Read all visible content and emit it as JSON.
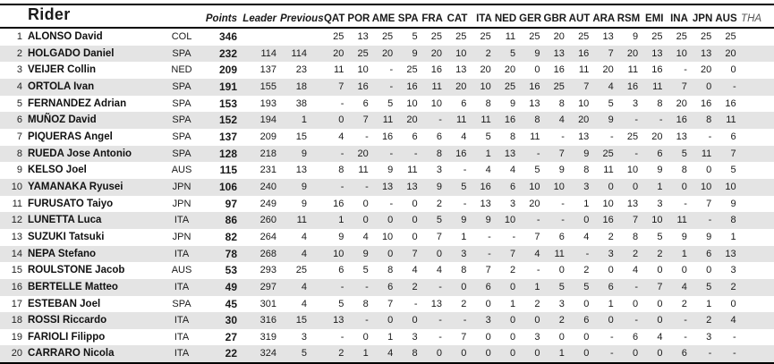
{
  "table": {
    "rider_header": "Rider",
    "points_header": "Points",
    "leader_header": "Leader",
    "previous_header": "Previous",
    "race_headers": [
      "QAT",
      "POR",
      "AME",
      "SPA",
      "FRA",
      "CAT",
      "ITA",
      "NED",
      "GER",
      "GBR",
      "AUT",
      "ARA",
      "RSM",
      "EMI",
      "INA",
      "JPN",
      "AUS",
      "THA"
    ],
    "future_races": [
      "THA"
    ],
    "rows": [
      {
        "pos": 1,
        "name": "ALONSO David",
        "country": "COL",
        "points": 346,
        "leader": "",
        "previous": "",
        "scores": [
          "25",
          "13",
          "25",
          "5",
          "25",
          "25",
          "25",
          "11",
          "25",
          "20",
          "25",
          "13",
          "9",
          "25",
          "25",
          "25",
          "25"
        ]
      },
      {
        "pos": 2,
        "name": "HOLGADO Daniel",
        "country": "SPA",
        "points": 232,
        "leader": "114",
        "previous": "114",
        "scores": [
          "20",
          "25",
          "20",
          "9",
          "20",
          "10",
          "2",
          "5",
          "9",
          "13",
          "16",
          "7",
          "20",
          "13",
          "10",
          "13",
          "20"
        ]
      },
      {
        "pos": 3,
        "name": "VEIJER Collin",
        "country": "NED",
        "points": 209,
        "leader": "137",
        "previous": "23",
        "scores": [
          "11",
          "10",
          "-",
          "25",
          "16",
          "13",
          "20",
          "20",
          "0",
          "16",
          "11",
          "20",
          "11",
          "16",
          "-",
          "20",
          "0"
        ]
      },
      {
        "pos": 4,
        "name": "ORTOLA Ivan",
        "country": "SPA",
        "points": 191,
        "leader": "155",
        "previous": "18",
        "scores": [
          "7",
          "16",
          "-",
          "16",
          "11",
          "20",
          "10",
          "25",
          "16",
          "25",
          "7",
          "4",
          "16",
          "11",
          "7",
          "0",
          "-"
        ]
      },
      {
        "pos": 5,
        "name": "FERNANDEZ Adrian",
        "country": "SPA",
        "points": 153,
        "leader": "193",
        "previous": "38",
        "scores": [
          "-",
          "6",
          "5",
          "10",
          "10",
          "6",
          "8",
          "9",
          "13",
          "8",
          "10",
          "5",
          "3",
          "8",
          "20",
          "16",
          "16"
        ]
      },
      {
        "pos": 6,
        "name": "MUÑOZ David",
        "country": "SPA",
        "points": 152,
        "leader": "194",
        "previous": "1",
        "scores": [
          "0",
          "7",
          "11",
          "20",
          "-",
          "11",
          "11",
          "16",
          "8",
          "4",
          "20",
          "9",
          "-",
          "-",
          "16",
          "8",
          "11"
        ]
      },
      {
        "pos": 7,
        "name": "PIQUERAS Angel",
        "country": "SPA",
        "points": 137,
        "leader": "209",
        "previous": "15",
        "scores": [
          "4",
          "-",
          "16",
          "6",
          "6",
          "4",
          "5",
          "8",
          "11",
          "-",
          "13",
          "-",
          "25",
          "20",
          "13",
          "-",
          "6"
        ]
      },
      {
        "pos": 8,
        "name": "RUEDA Jose Antonio",
        "country": "SPA",
        "points": 128,
        "leader": "218",
        "previous": "9",
        "scores": [
          "-",
          "20",
          "-",
          "-",
          "8",
          "16",
          "1",
          "13",
          "-",
          "7",
          "9",
          "25",
          "-",
          "6",
          "5",
          "11",
          "7"
        ]
      },
      {
        "pos": 9,
        "name": "KELSO Joel",
        "country": "AUS",
        "points": 115,
        "leader": "231",
        "previous": "13",
        "scores": [
          "8",
          "11",
          "9",
          "11",
          "3",
          "-",
          "4",
          "4",
          "5",
          "9",
          "8",
          "11",
          "10",
          "9",
          "8",
          "0",
          "5"
        ]
      },
      {
        "pos": 10,
        "name": "YAMANAKA Ryusei",
        "country": "JPN",
        "points": 106,
        "leader": "240",
        "previous": "9",
        "scores": [
          "-",
          "-",
          "13",
          "13",
          "9",
          "5",
          "16",
          "6",
          "10",
          "10",
          "3",
          "0",
          "0",
          "1",
          "0",
          "10",
          "10"
        ]
      },
      {
        "pos": 11,
        "name": "FURUSATO Taiyo",
        "country": "JPN",
        "points": 97,
        "leader": "249",
        "previous": "9",
        "scores": [
          "16",
          "0",
          "-",
          "0",
          "2",
          "-",
          "13",
          "3",
          "20",
          "-",
          "1",
          "10",
          "13",
          "3",
          "-",
          "7",
          "9"
        ]
      },
      {
        "pos": 12,
        "name": "LUNETTA Luca",
        "country": "ITA",
        "points": 86,
        "leader": "260",
        "previous": "11",
        "scores": [
          "1",
          "0",
          "0",
          "0",
          "5",
          "9",
          "9",
          "10",
          "-",
          "-",
          "0",
          "16",
          "7",
          "10",
          "11",
          "-",
          "8"
        ]
      },
      {
        "pos": 13,
        "name": "SUZUKI Tatsuki",
        "country": "JPN",
        "points": 82,
        "leader": "264",
        "previous": "4",
        "scores": [
          "9",
          "4",
          "10",
          "0",
          "7",
          "1",
          "-",
          "-",
          "7",
          "6",
          "4",
          "2",
          "8",
          "5",
          "9",
          "9",
          "1"
        ]
      },
      {
        "pos": 14,
        "name": "NEPA Stefano",
        "country": "ITA",
        "points": 78,
        "leader": "268",
        "previous": "4",
        "scores": [
          "10",
          "9",
          "0",
          "7",
          "0",
          "3",
          "-",
          "7",
          "4",
          "11",
          "-",
          "3",
          "2",
          "2",
          "1",
          "6",
          "13"
        ]
      },
      {
        "pos": 15,
        "name": "ROULSTONE Jacob",
        "country": "AUS",
        "points": 53,
        "leader": "293",
        "previous": "25",
        "scores": [
          "6",
          "5",
          "8",
          "4",
          "4",
          "8",
          "7",
          "2",
          "-",
          "0",
          "2",
          "0",
          "4",
          "0",
          "0",
          "0",
          "3"
        ]
      },
      {
        "pos": 16,
        "name": "BERTELLE Matteo",
        "country": "ITA",
        "points": 49,
        "leader": "297",
        "previous": "4",
        "scores": [
          "-",
          "-",
          "6",
          "2",
          "-",
          "0",
          "6",
          "0",
          "1",
          "5",
          "5",
          "6",
          "-",
          "7",
          "4",
          "5",
          "2"
        ]
      },
      {
        "pos": 17,
        "name": "ESTEBAN Joel",
        "country": "SPA",
        "points": 45,
        "leader": "301",
        "previous": "4",
        "scores": [
          "5",
          "8",
          "7",
          "-",
          "13",
          "2",
          "0",
          "1",
          "2",
          "3",
          "0",
          "1",
          "0",
          "0",
          "2",
          "1",
          "0"
        ]
      },
      {
        "pos": 18,
        "name": "ROSSI Riccardo",
        "country": "ITA",
        "points": 30,
        "leader": "316",
        "previous": "15",
        "scores": [
          "13",
          "-",
          "0",
          "0",
          "-",
          "-",
          "3",
          "0",
          "0",
          "2",
          "6",
          "0",
          "-",
          "0",
          "-",
          "2",
          "4"
        ]
      },
      {
        "pos": 19,
        "name": "FARIOLI Filippo",
        "country": "ITA",
        "points": 27,
        "leader": "319",
        "previous": "3",
        "scores": [
          "-",
          "0",
          "1",
          "3",
          "-",
          "7",
          "0",
          "0",
          "3",
          "0",
          "0",
          "-",
          "6",
          "4",
          "-",
          "3",
          "-"
        ]
      },
      {
        "pos": 20,
        "name": "CARRARO Nicola",
        "country": "ITA",
        "points": 22,
        "leader": "324",
        "previous": "5",
        "scores": [
          "2",
          "1",
          "4",
          "8",
          "0",
          "0",
          "0",
          "0",
          "0",
          "1",
          "0",
          "-",
          "0",
          "0",
          "6",
          "-",
          "-"
        ]
      }
    ]
  },
  "colors": {
    "row_stripe": "#e4e4e4",
    "border": "#000000",
    "text": "#1a1a1a",
    "future_race_header": "#555555"
  }
}
